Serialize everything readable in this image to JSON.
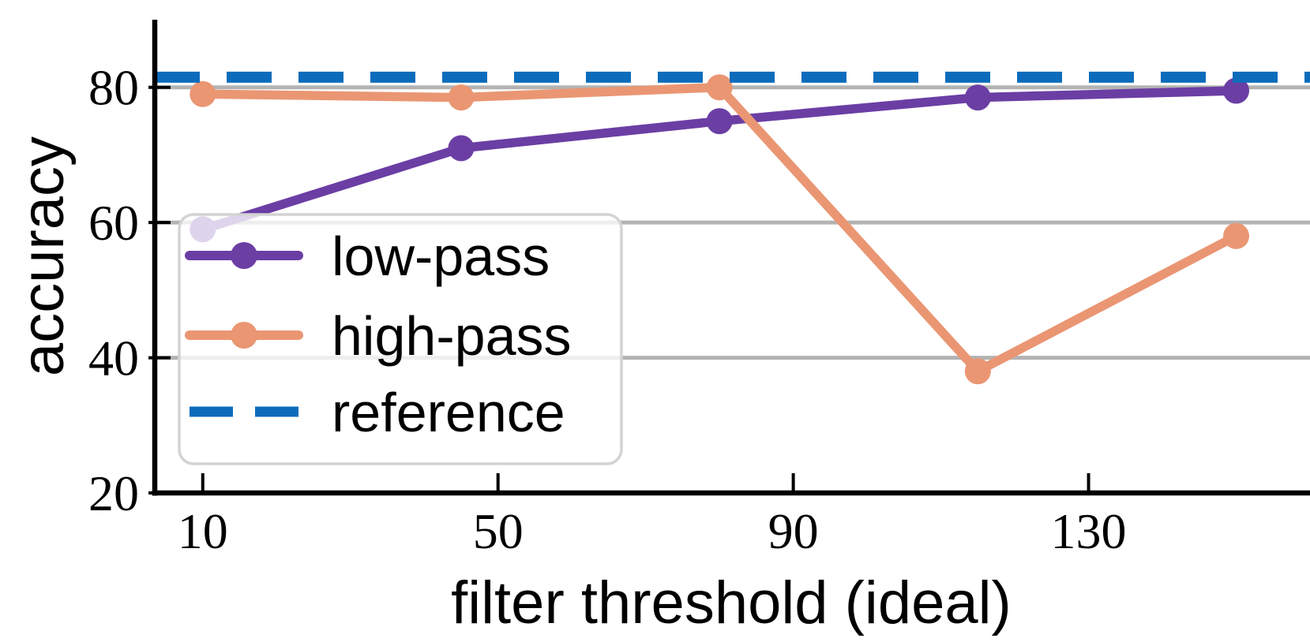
{
  "figure": {
    "background_color": "#ffffff",
    "axis_color": "#000000",
    "text_color": "#000000"
  },
  "chart_data": {
    "type": "line",
    "title": "",
    "xlabel": "filter threshold (ideal)",
    "ylabel": "accuracy",
    "x": [
      10,
      45,
      80,
      115,
      150
    ],
    "series": [
      {
        "name": "low-pass",
        "color": "#6B3EA4",
        "line": "solid",
        "marker": "circle",
        "values": [
          59,
          71,
          75,
          78.5,
          79.5
        ]
      },
      {
        "name": "high-pass",
        "color": "#EA9673",
        "line": "solid",
        "marker": "circle",
        "values": [
          79,
          78.5,
          80,
          38,
          58
        ]
      },
      {
        "name": "reference",
        "color": "#0C6CBB",
        "line": "dashed",
        "marker": "none",
        "constant": 81.5,
        "values": [
          81.5,
          81.5,
          81.5,
          81.5,
          81.5
        ]
      }
    ],
    "xticks": [
      10,
      50,
      90,
      130
    ],
    "yticks": [
      20,
      40,
      60,
      80
    ],
    "xlim": [
      3.5,
      160
    ],
    "ylim": [
      20,
      90
    ],
    "grid": "horizontal",
    "grid_color": "#B3B3B3",
    "legend": {
      "location": "lower left",
      "frame": true,
      "frame_color": "#D3D3D3",
      "frame_fill_alpha": 0.78
    }
  }
}
